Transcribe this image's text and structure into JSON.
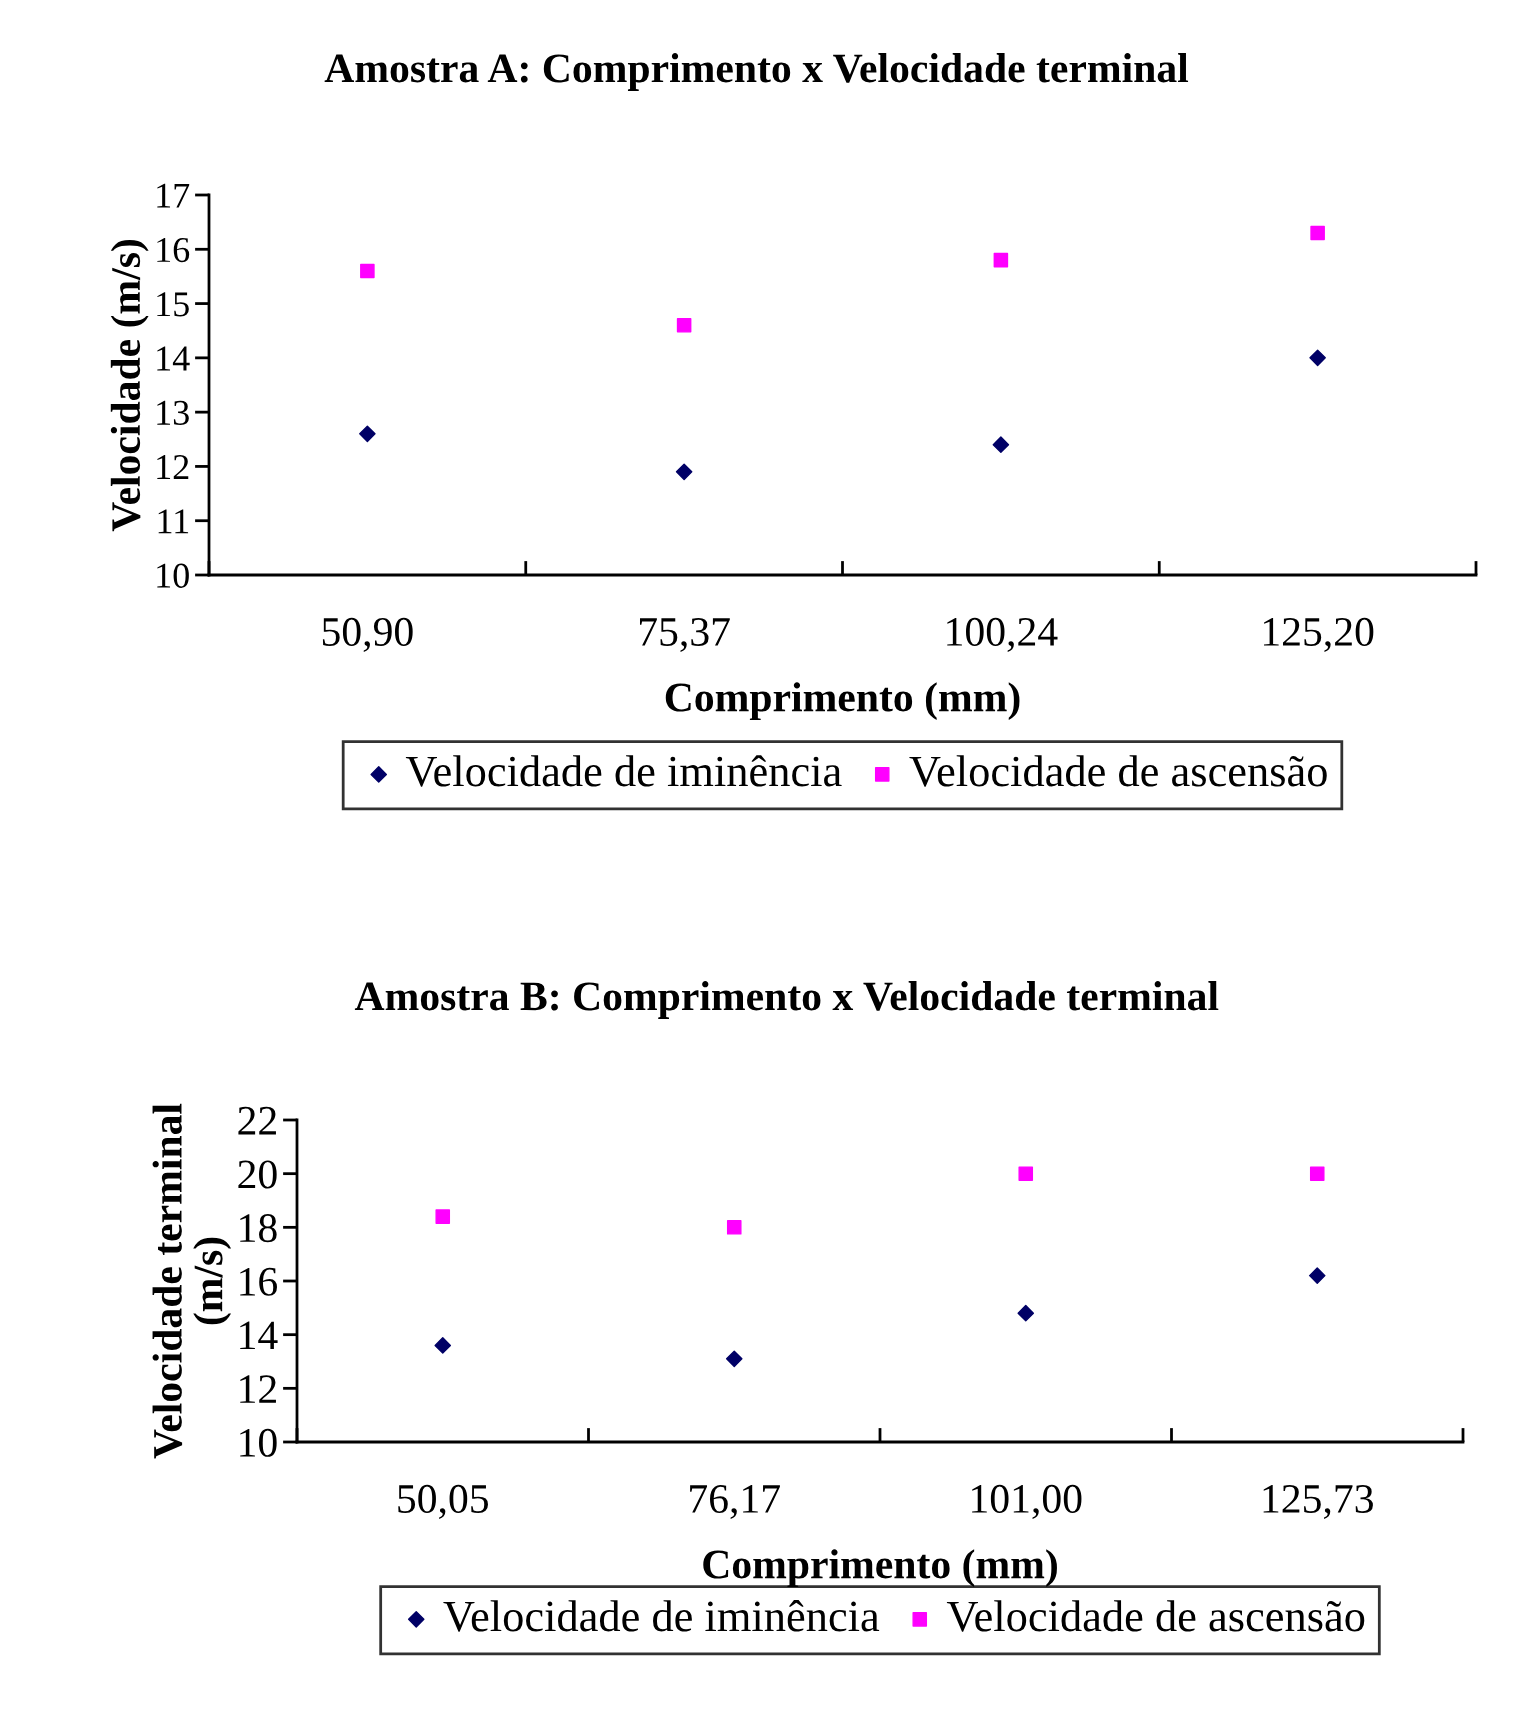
{
  "chart_data": [
    {
      "type": "scatter",
      "title": "Amostra A: Comprimento x Velocidade terminal",
      "xlabel": "Comprimento (mm)",
      "ylabel": "Velocidade (m/s)",
      "categories": [
        "50,90",
        "75,37",
        "100,24",
        "125,20"
      ],
      "series": [
        {
          "name": "Velocidade de iminência",
          "color": "#000066",
          "marker": "diamond",
          "values": [
            12.6,
            11.9,
            12.4,
            14.0
          ]
        },
        {
          "name": "Velocidade de ascensão",
          "color": "#ff00ff",
          "marker": "square",
          "values": [
            15.6,
            14.6,
            15.8,
            16.3
          ]
        }
      ],
      "ylim": [
        10,
        17
      ],
      "yticks": [
        10,
        11,
        12,
        13,
        14,
        15,
        16,
        17
      ],
      "grid": false,
      "legend": "bottom"
    },
    {
      "type": "scatter",
      "title": "Amostra B: Comprimento x Velocidade terminal",
      "xlabel": "Comprimento (mm)",
      "ylabel": "Velocidade terminal\n(m/s)",
      "categories": [
        "50,05",
        "76,17",
        "101,00",
        "125,73"
      ],
      "series": [
        {
          "name": "Velocidade de iminência",
          "color": "#000066",
          "marker": "diamond",
          "values": [
            13.6,
            13.1,
            14.8,
            16.2
          ]
        },
        {
          "name": "Velocidade de ascensão",
          "color": "#ff00ff",
          "marker": "square",
          "values": [
            18.4,
            18.0,
            20.0,
            20.0
          ]
        }
      ],
      "ylim": [
        10,
        22
      ],
      "yticks": [
        10,
        12,
        14,
        16,
        18,
        20,
        22
      ],
      "grid": false,
      "legend": "bottom"
    }
  ]
}
